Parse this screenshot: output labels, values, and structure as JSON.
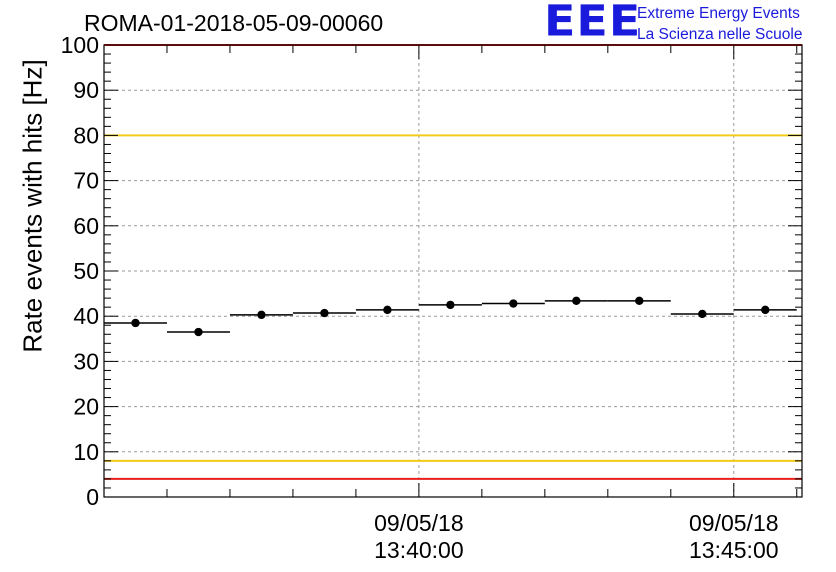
{
  "chart_data": {
    "type": "scatter",
    "title": "ROMA-01-2018-05-09-00060",
    "ylabel": "Rate events with hits [Hz]",
    "xlabel": "",
    "ylim": [
      0,
      100
    ],
    "yticks": [
      0,
      10,
      20,
      30,
      40,
      50,
      60,
      70,
      80,
      90,
      100
    ],
    "x_axis_time_range": [
      "13:35:00",
      "13:46:05"
    ],
    "xtick_labels": [
      {
        "time": "13:40:00",
        "date": "09/05/18",
        "clock": "13:40:00"
      },
      {
        "time": "13:45:00",
        "date": "09/05/18",
        "clock": "13:45:00"
      }
    ],
    "grid": true,
    "bin_width_seconds": 60,
    "points": [
      {
        "start": "13:35:00",
        "end": "13:36:00",
        "y": 38.5
      },
      {
        "start": "13:36:00",
        "end": "13:37:00",
        "y": 36.5
      },
      {
        "start": "13:37:00",
        "end": "13:38:00",
        "y": 40.3
      },
      {
        "start": "13:38:00",
        "end": "13:39:00",
        "y": 40.7
      },
      {
        "start": "13:39:00",
        "end": "13:40:00",
        "y": 41.4
      },
      {
        "start": "13:40:00",
        "end": "13:41:00",
        "y": 42.5
      },
      {
        "start": "13:41:00",
        "end": "13:42:00",
        "y": 42.8
      },
      {
        "start": "13:42:00",
        "end": "13:43:00",
        "y": 43.4
      },
      {
        "start": "13:43:00",
        "end": "13:44:00",
        "y": 43.4
      },
      {
        "start": "13:44:00",
        "end": "13:45:00",
        "y": 40.5
      },
      {
        "start": "13:45:00",
        "end": "13:46:00",
        "y": 41.4
      }
    ],
    "reference_lines": [
      {
        "y": 100,
        "color": "#e8201c"
      },
      {
        "y": 80,
        "color": "#f2cc1a"
      },
      {
        "y": 8,
        "color": "#f2cc1a"
      },
      {
        "y": 4,
        "color": "#e8201c"
      }
    ],
    "marker_color": "#000000"
  },
  "logo": {
    "mark": "EEE",
    "line1": "Extreme Energy Events",
    "line2": "La Scienza nelle Scuole",
    "color": "#1a1adc"
  }
}
